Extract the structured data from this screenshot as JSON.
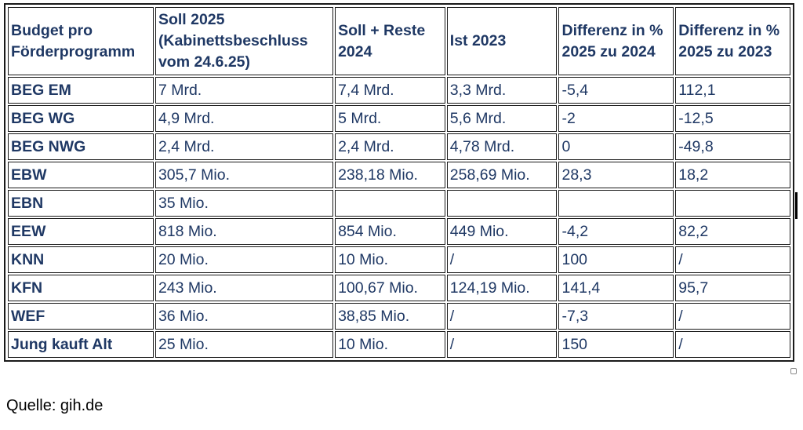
{
  "table": {
    "headers": [
      "Budget pro Förderprogramm",
      "Soll 2025 (Kabinettsbeschluss vom 24.6.25)",
      "Soll + Reste 2024",
      "Ist 2023",
      "Differenz in % 2025 zu 2024",
      "Differenz in % 2025 zu 2023"
    ],
    "rows": [
      [
        "BEG EM",
        "7 Mrd.",
        "7,4 Mrd.",
        "3,3 Mrd.",
        "-5,4",
        "112,1"
      ],
      [
        "BEG WG",
        "4,9 Mrd.",
        "5 Mrd.",
        "5,6 Mrd.",
        "-2",
        "-12,5"
      ],
      [
        "BEG NWG",
        "2,4 Mrd.",
        "2,4 Mrd.",
        "4,78 Mrd.",
        "0",
        "-49,8"
      ],
      [
        "EBW",
        "305,7 Mio.",
        "238,18 Mio.",
        "258,69 Mio.",
        "28,3",
        "18,2"
      ],
      [
        "EBN",
        "35 Mio.",
        "",
        "",
        "",
        ""
      ],
      [
        "EEW",
        "818 Mio.",
        "854 Mio.",
        "449 Mio.",
        "-4,2",
        "82,2"
      ],
      [
        "KNN",
        "20 Mio.",
        "10 Mio.",
        "/",
        "100",
        "/"
      ],
      [
        "KFN",
        "243 Mio.",
        "100,67 Mio.",
        "124,19 Mio.",
        "141,4",
        "95,7"
      ],
      [
        "WEF",
        "36 Mio.",
        "38,85 Mio.",
        "/",
        "-7,3",
        "/"
      ],
      [
        "Jung kauft Alt",
        "25 Mio.",
        "10 Mio.",
        "/",
        "150",
        "/"
      ]
    ]
  },
  "source": "Quelle: gih.de",
  "colors": {
    "text": "#1f3864",
    "border": "#1a1a1a"
  }
}
